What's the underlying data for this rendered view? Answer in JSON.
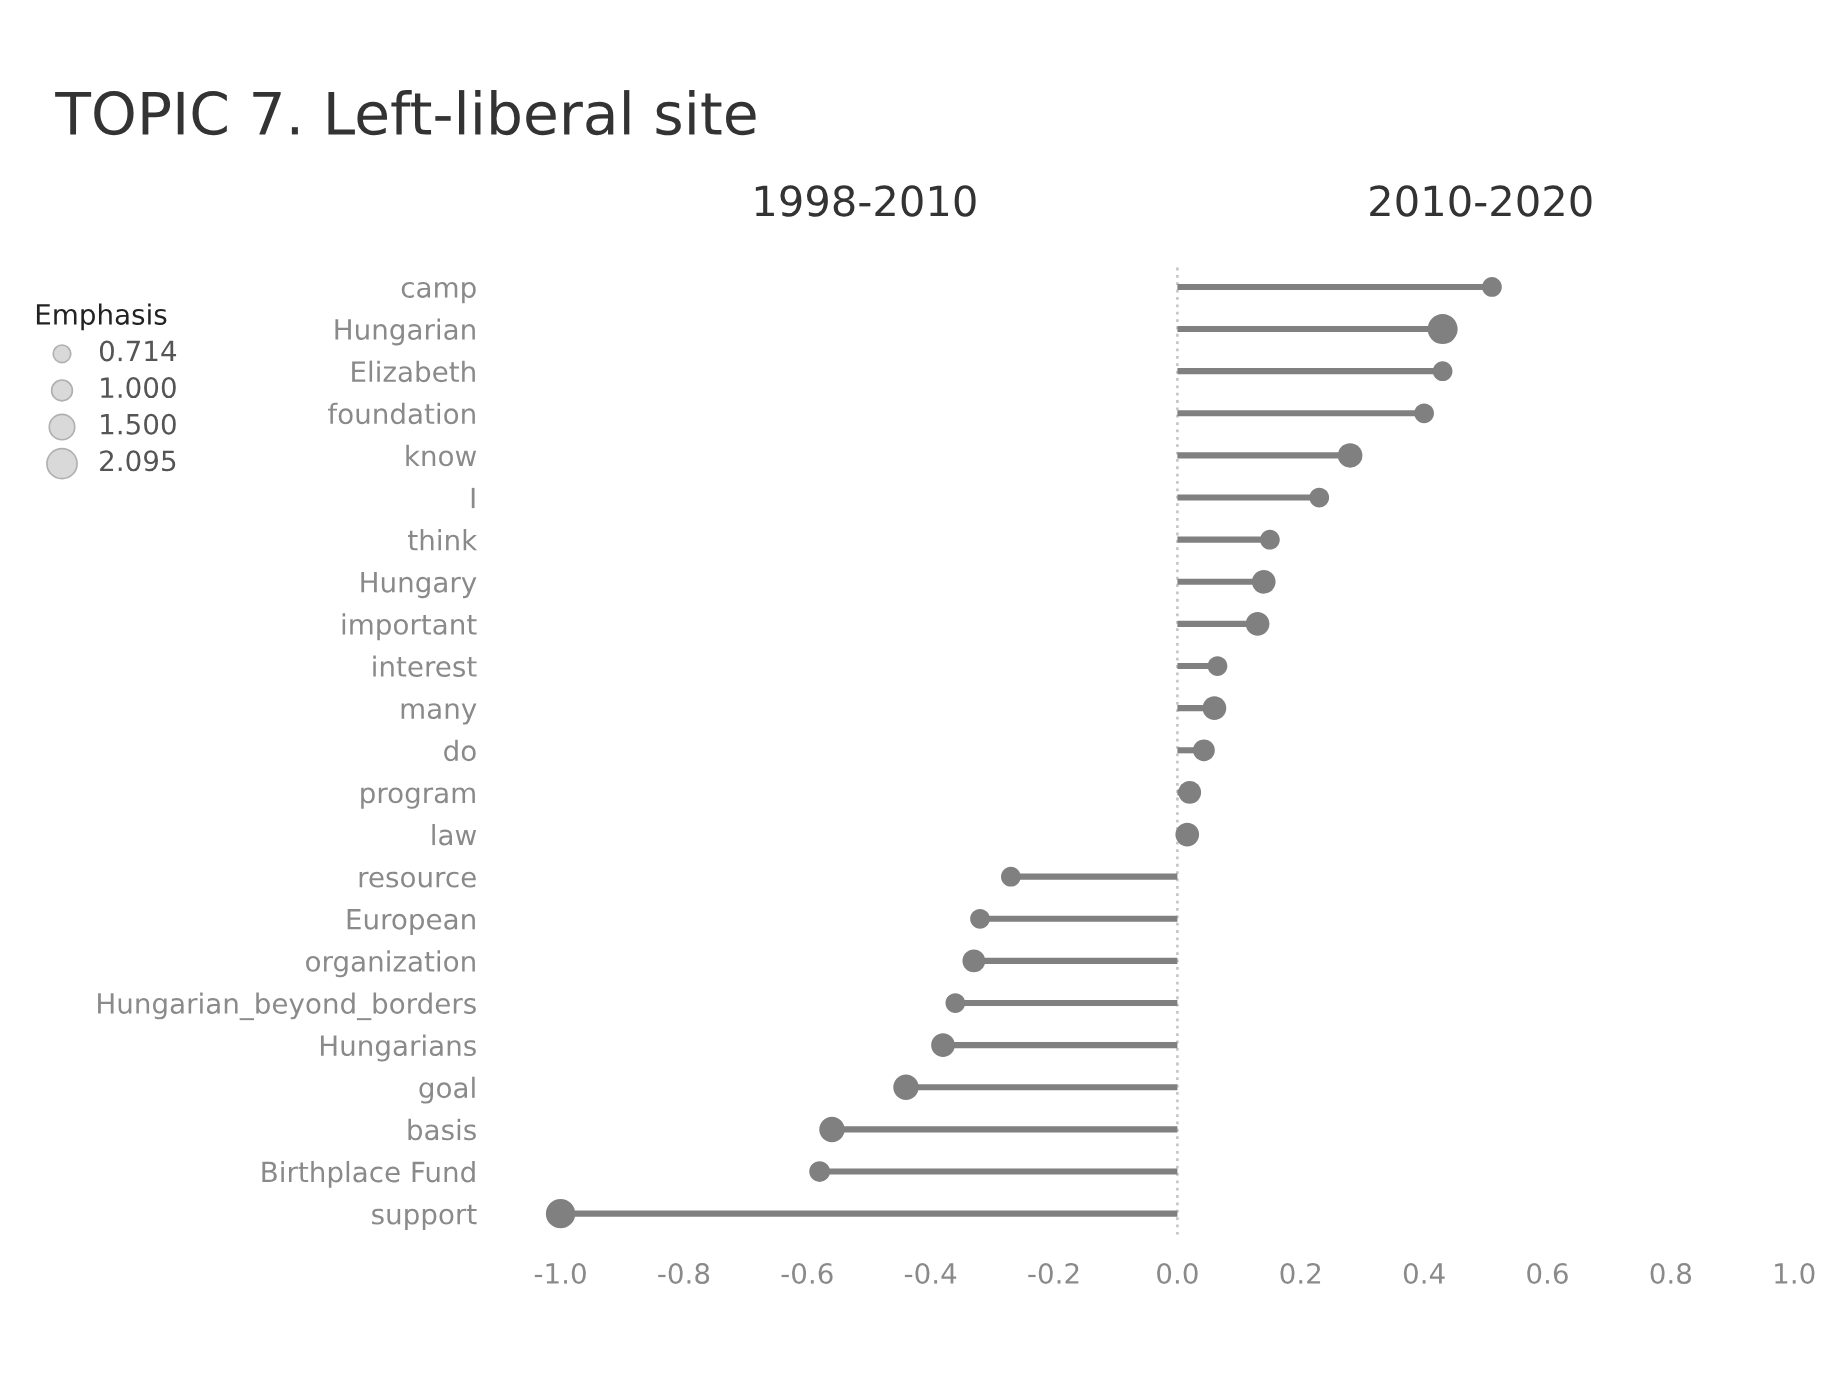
{
  "chart_data": {
    "type": "lollipop",
    "orientation": "horizontal",
    "title": "TOPIC 7. Left-liberal site",
    "annotations": [
      "1998-2010",
      "2010-2020"
    ],
    "categories": [
      "camp",
      "Hungarian",
      "Elizabeth",
      "foundation",
      "know",
      "I",
      "think",
      "Hungary",
      "important",
      "interest",
      "many",
      "do",
      "program",
      "law",
      "resource",
      "European",
      "organization",
      "Hungarian_beyond_borders",
      "Hungarians",
      "goal",
      "basis",
      "Birthplace Fund",
      "support"
    ],
    "values": [
      0.51,
      0.43,
      0.43,
      0.4,
      0.28,
      0.23,
      0.15,
      0.14,
      0.13,
      0.065,
      0.06,
      0.043,
      0.02,
      0.016,
      -0.27,
      -0.32,
      -0.33,
      -0.36,
      -0.38,
      -0.44,
      -0.56,
      -0.58,
      -1.0
    ],
    "sizes": [
      0.9,
      2.095,
      0.9,
      0.9,
      1.4,
      0.9,
      0.9,
      1.3,
      1.3,
      0.9,
      1.3,
      1.1,
      1.2,
      1.3,
      0.9,
      0.9,
      1.2,
      0.9,
      1.3,
      1.5,
      1.5,
      1.0,
      2.0
    ],
    "size_legend": [
      0.714,
      {
        "value": 1.0,
        "label": "1.000"
      },
      {
        "value": 1.5,
        "label": "1.500"
      },
      2.095
    ],
    "legend_title": "Emphasis",
    "color": "#808080",
    "xlim": [
      -1.0,
      1.0
    ],
    "xticks": [
      {
        "value": -1,
        "label": "-1.0"
      },
      {
        "value": -0.8,
        "label": "-0.8"
      },
      {
        "value": -0.6,
        "label": "-0.6"
      },
      {
        "value": -0.4,
        "label": "-0.4"
      },
      {
        "value": -0.2,
        "label": "-0.2"
      },
      {
        "value": 0,
        "label": "0.0"
      },
      {
        "value": 0.2,
        "label": "0.2"
      },
      {
        "value": 0.4,
        "label": "0.4"
      },
      {
        "value": 0.6,
        "label": "0.6"
      },
      {
        "value": 0.8,
        "label": "0.8"
      },
      {
        "value": 1,
        "label": "1.0"
      }
    ],
    "ref_lines": [
      {
        "axis": "x",
        "value": 0,
        "color": "#c8c8c8",
        "line_style": "dotted"
      }
    ],
    "grid": false
  }
}
